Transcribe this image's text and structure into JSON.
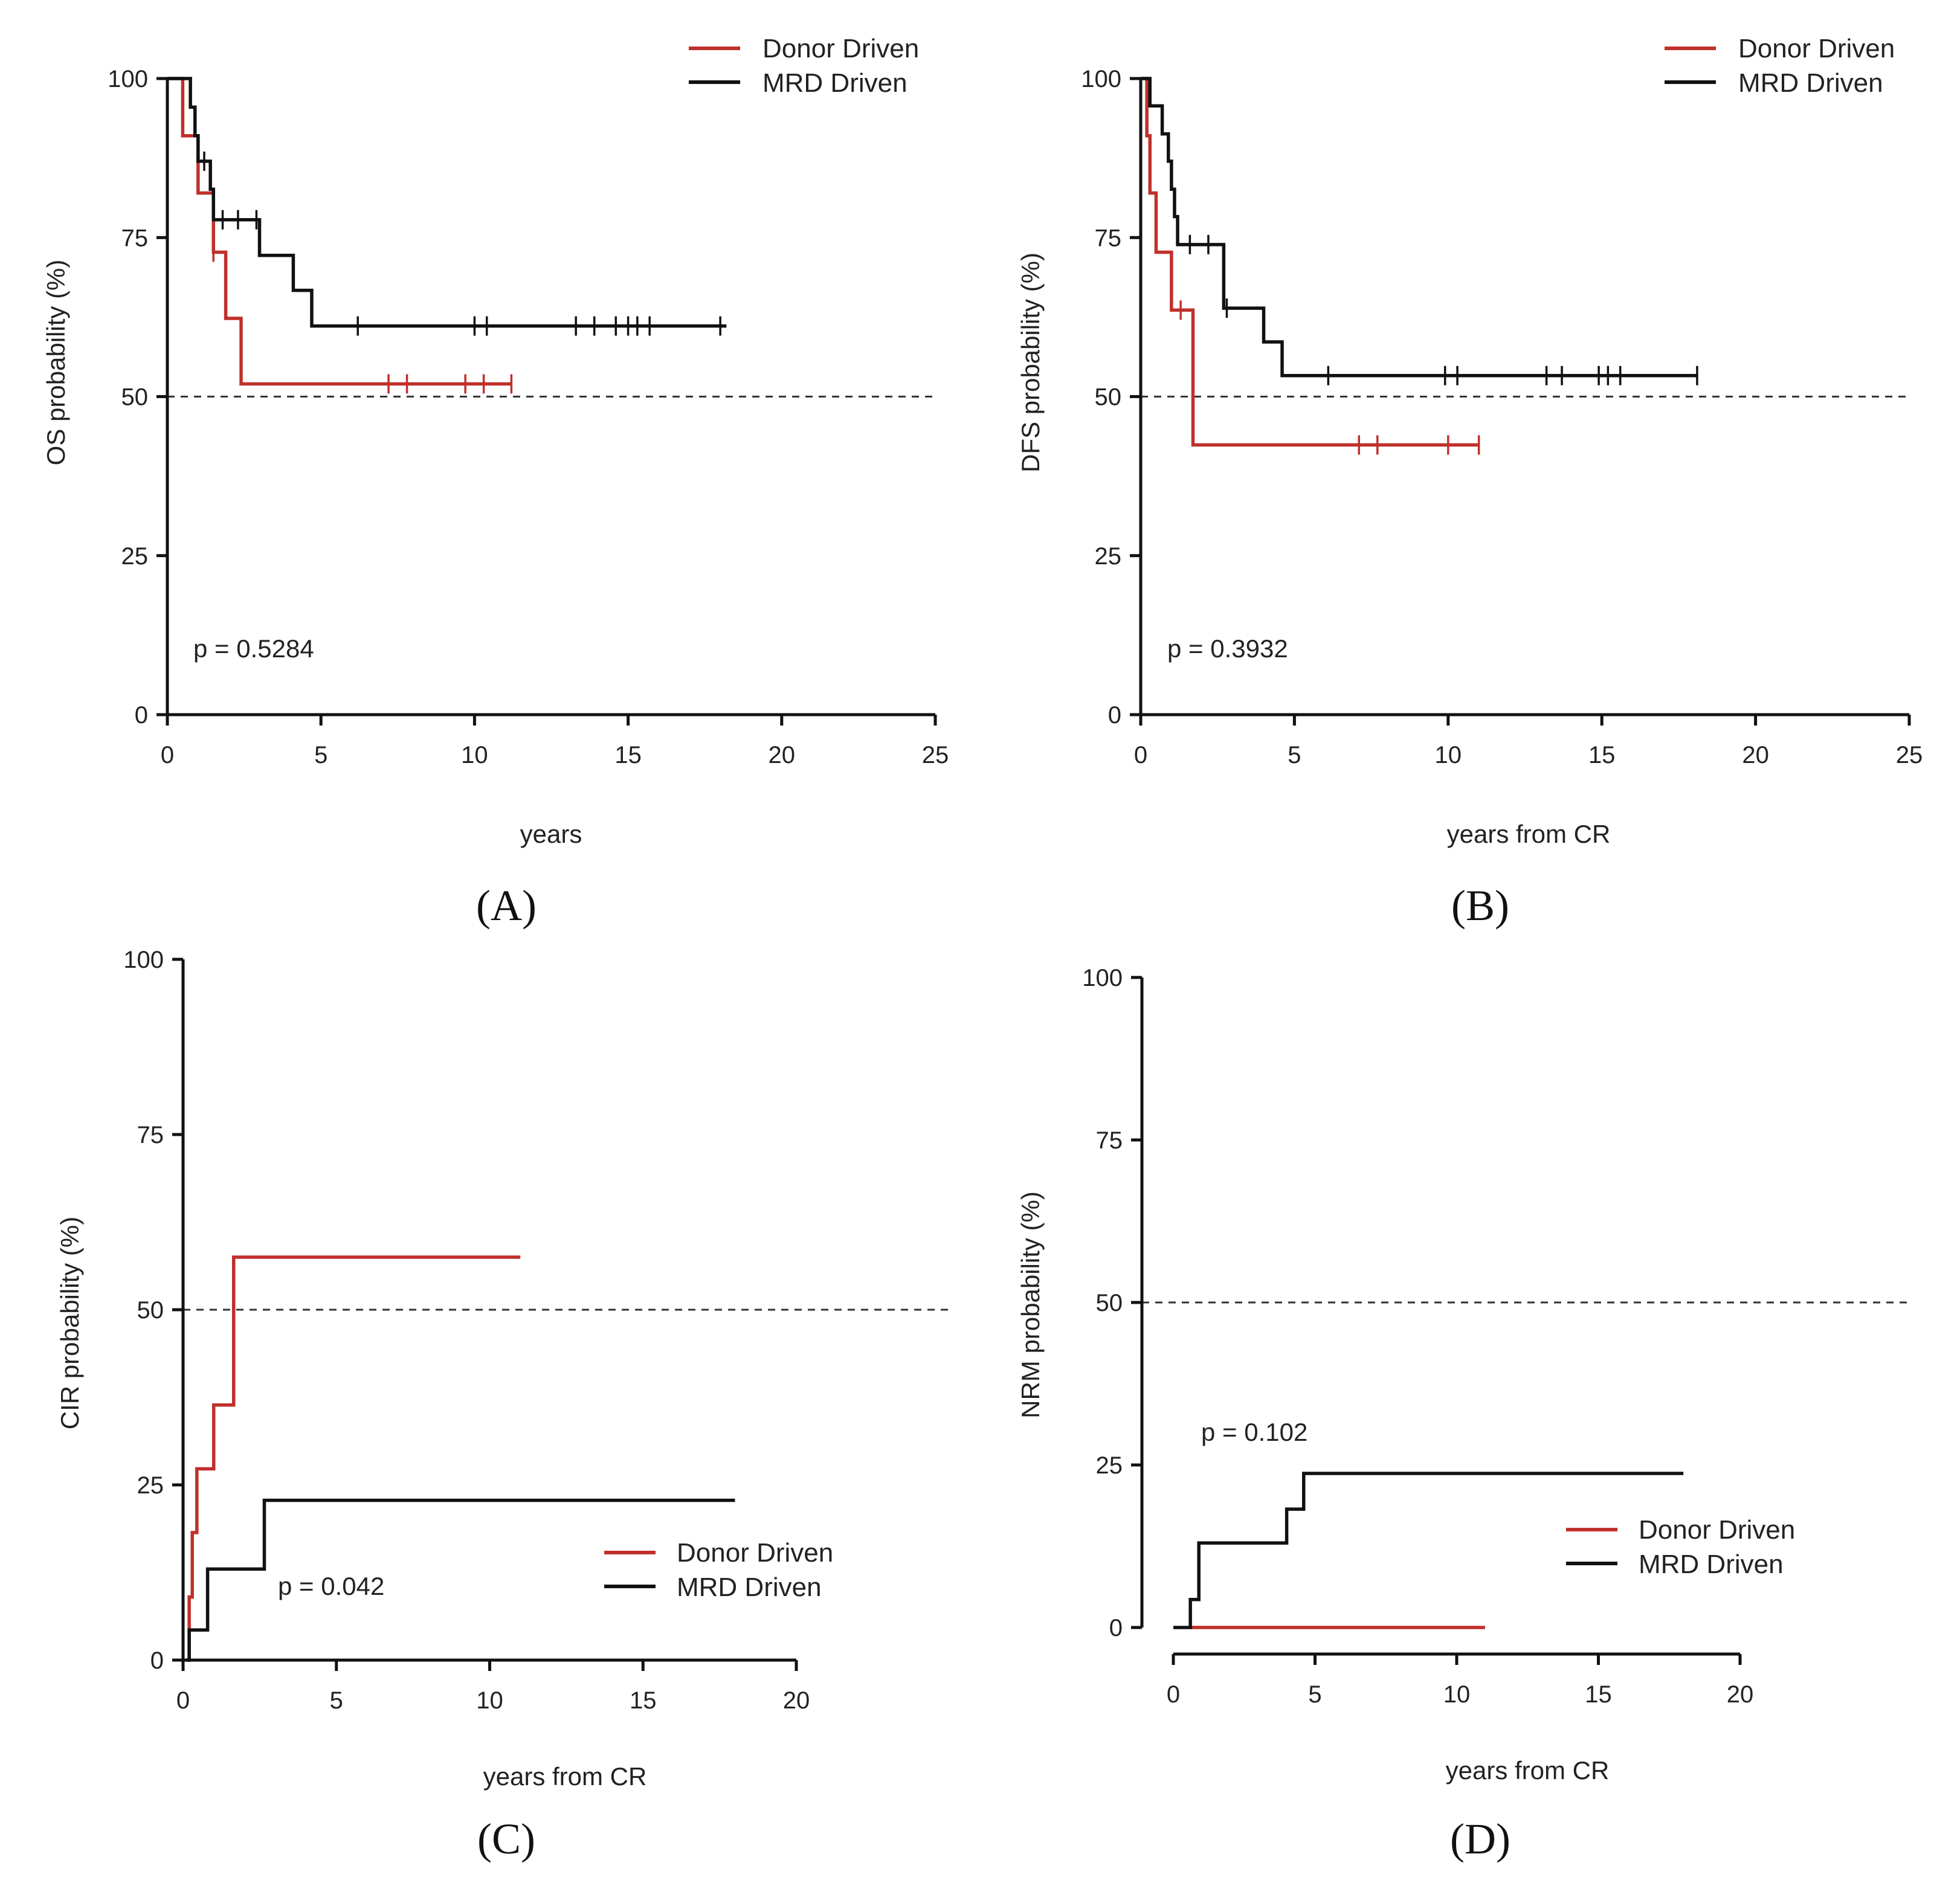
{
  "colors": {
    "donor": "#c0302b",
    "mrd": "#111111"
  },
  "chart_data": [
    {
      "type": "line",
      "panel_label": "(A)",
      "xlabel": "years",
      "ylabel": "OS probability (%)",
      "xlim": [
        0,
        25
      ],
      "ylim": [
        0,
        100
      ],
      "xticks": [
        0,
        5,
        10,
        15,
        20,
        25
      ],
      "yticks": [
        0,
        25,
        50,
        75,
        100
      ],
      "reference_line_y": 50,
      "p_value": "p = 0.5284",
      "legend": {
        "placement": "top-right",
        "entries": [
          "Donor Driven",
          "MRD Driven"
        ]
      },
      "series": [
        {
          "name": "Donor Driven",
          "steps": [
            [
              0,
              100
            ],
            [
              0.5,
              91
            ],
            [
              1.0,
              82
            ],
            [
              1.5,
              72.7
            ],
            [
              1.9,
              62.3
            ],
            [
              2.4,
              52
            ],
            [
              11.2,
              52
            ]
          ],
          "censored": [
            [
              1.5,
              72.7
            ],
            [
              7.2,
              52
            ],
            [
              7.8,
              52
            ],
            [
              9.7,
              52
            ],
            [
              10.3,
              52
            ],
            [
              11.2,
              52
            ]
          ]
        },
        {
          "name": "MRD Driven",
          "steps": [
            [
              0,
              100
            ],
            [
              0.75,
              95.5
            ],
            [
              0.9,
              91
            ],
            [
              1.0,
              87
            ],
            [
              1.4,
              82.6
            ],
            [
              1.5,
              77.8
            ],
            [
              3.0,
              72.2
            ],
            [
              4.1,
              66.7
            ],
            [
              4.7,
              61.1
            ],
            [
              18.2,
              61.1
            ]
          ],
          "censored": [
            [
              1.2,
              87
            ],
            [
              1.8,
              77.8
            ],
            [
              2.3,
              77.8
            ],
            [
              2.9,
              77.8
            ],
            [
              6.2,
              61.1
            ],
            [
              10.0,
              61.1
            ],
            [
              10.4,
              61.1
            ],
            [
              13.3,
              61.1
            ],
            [
              13.9,
              61.1
            ],
            [
              14.6,
              61.1
            ],
            [
              15.0,
              61.1
            ],
            [
              15.3,
              61.1
            ],
            [
              15.7,
              61.1
            ],
            [
              18.0,
              61.1
            ]
          ]
        }
      ]
    },
    {
      "type": "line",
      "panel_label": "(B)",
      "xlabel": "years from CR",
      "ylabel": "DFS probability (%)",
      "xlim": [
        0,
        25
      ],
      "ylim": [
        0,
        100
      ],
      "xticks": [
        0,
        5,
        10,
        15,
        20,
        25
      ],
      "yticks": [
        0,
        25,
        50,
        75,
        100
      ],
      "reference_line_y": 50,
      "p_value": "p = 0.3932",
      "legend": {
        "placement": "top-right",
        "entries": [
          "Donor Driven",
          "MRD Driven"
        ]
      },
      "series": [
        {
          "name": "Donor Driven",
          "steps": [
            [
              0,
              100
            ],
            [
              0.2,
              91
            ],
            [
              0.3,
              82
            ],
            [
              0.5,
              72.7
            ],
            [
              1.0,
              63.6
            ],
            [
              1.7,
              42.4
            ],
            [
              11.0,
              42.4
            ]
          ],
          "censored": [
            [
              1.3,
              63.6
            ],
            [
              7.1,
              42.4
            ],
            [
              7.7,
              42.4
            ],
            [
              10.0,
              42.4
            ],
            [
              11.0,
              42.4
            ]
          ]
        },
        {
          "name": "MRD Driven",
          "steps": [
            [
              0,
              100
            ],
            [
              0.3,
              95.7
            ],
            [
              0.7,
              91.3
            ],
            [
              0.9,
              87
            ],
            [
              1.0,
              82.6
            ],
            [
              1.1,
              78.3
            ],
            [
              1.2,
              73.9
            ],
            [
              2.7,
              63.9
            ],
            [
              4.0,
              58.6
            ],
            [
              4.6,
              53.3
            ],
            [
              18.1,
              53.3
            ]
          ],
          "censored": [
            [
              1.6,
              73.9
            ],
            [
              2.2,
              73.9
            ],
            [
              2.8,
              63.9
            ],
            [
              6.1,
              53.3
            ],
            [
              9.9,
              53.3
            ],
            [
              10.3,
              53.3
            ],
            [
              13.2,
              53.3
            ],
            [
              13.7,
              53.3
            ],
            [
              14.9,
              53.3
            ],
            [
              15.2,
              53.3
            ],
            [
              15.6,
              53.3
            ],
            [
              18.1,
              53.3
            ]
          ]
        }
      ]
    },
    {
      "type": "line",
      "panel_label": "(C)",
      "xlabel": "years from CR",
      "ylabel": "CIR probability (%)",
      "xlim": [
        0,
        20
      ],
      "ylim": [
        0,
        100
      ],
      "xticks": [
        0,
        5,
        10,
        15,
        20
      ],
      "yticks": [
        0,
        25,
        50,
        75,
        100
      ],
      "reference_line_y": 50,
      "p_value": "p = 0.042",
      "legend": {
        "placement": "bottom-right",
        "entries": [
          "Donor Driven",
          "MRD Driven"
        ]
      },
      "series": [
        {
          "name": "Donor Driven",
          "steps": [
            [
              0.1,
              0
            ],
            [
              0.2,
              9
            ],
            [
              0.3,
              18.2
            ],
            [
              0.45,
              27.3
            ],
            [
              1.0,
              36.4
            ],
            [
              1.65,
              57.5
            ],
            [
              11.0,
              57.5
            ]
          ],
          "censored": []
        },
        {
          "name": "MRD Driven",
          "steps": [
            [
              0.1,
              0
            ],
            [
              0.2,
              4.3
            ],
            [
              0.8,
              13
            ],
            [
              2.65,
              22.8
            ],
            [
              18.0,
              22.8
            ]
          ],
          "censored": []
        }
      ]
    },
    {
      "type": "line",
      "panel_label": "(D)",
      "xlabel": "years from CR",
      "ylabel": "NRM probability (%)",
      "xlim": [
        0,
        20
      ],
      "ylim": [
        0,
        100
      ],
      "xticks": [
        0,
        5,
        10,
        15,
        20
      ],
      "yticks": [
        0,
        25,
        50,
        75,
        100
      ],
      "reference_line_y": 50,
      "p_value": "p = 0.102",
      "legend": {
        "placement": "center-right",
        "entries": [
          "Donor Driven",
          "MRD Driven"
        ]
      },
      "series": [
        {
          "name": "Donor Driven",
          "steps": [
            [
              0.6,
              0
            ],
            [
              11.0,
              0
            ]
          ],
          "censored": []
        },
        {
          "name": "MRD Driven",
          "steps": [
            [
              0,
              0
            ],
            [
              0.6,
              4.3
            ],
            [
              0.9,
              13
            ],
            [
              4.0,
              18.2
            ],
            [
              4.6,
              23.7
            ],
            [
              18.0,
              23.7
            ]
          ],
          "censored": []
        }
      ]
    }
  ]
}
